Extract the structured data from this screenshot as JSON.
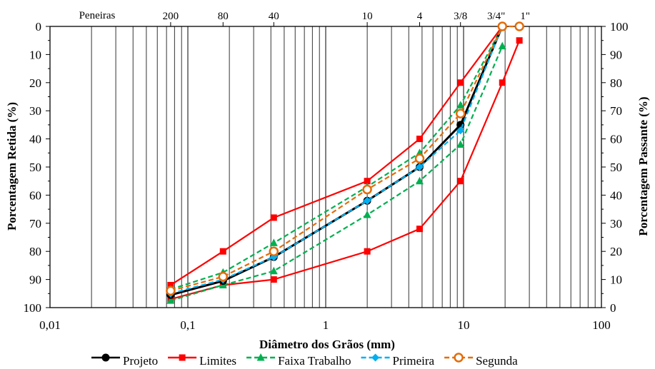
{
  "chart_data": {
    "type": "line",
    "title": "",
    "xlabel": "Diâmetro dos Grãos (mm)",
    "ylabel_left": "Porcentagem Retida (%)",
    "ylabel_right": "Porcentagem Passante (%)",
    "xscale": "log",
    "xlim": [
      0.01,
      100
    ],
    "ylim_left": [
      0,
      100
    ],
    "ylim_right": [
      0,
      100
    ],
    "left_axis_inverted": true,
    "grid": "vertical log gridlines",
    "legend_position": "bottom",
    "x_tick_labels": [
      {
        "x": 0.01,
        "label": "0,01"
      },
      {
        "x": 0.1,
        "label": "0,1"
      },
      {
        "x": 1,
        "label": "1"
      },
      {
        "x": 10,
        "label": "10"
      },
      {
        "x": 100,
        "label": "100"
      }
    ],
    "y_left_ticks": [
      "0",
      "10",
      "20",
      "30",
      "40",
      "50",
      "60",
      "70",
      "80",
      "90",
      "100"
    ],
    "y_right_ticks": [
      "100",
      "90",
      "80",
      "70",
      "60",
      "50",
      "40",
      "30",
      "20",
      "10",
      "0"
    ],
    "sieves_label": "Peneiras",
    "sieves": [
      {
        "label": "200",
        "mm": 0.075
      },
      {
        "label": "80",
        "mm": 0.18
      },
      {
        "label": "40",
        "mm": 0.42
      },
      {
        "label": "10",
        "mm": 2.0
      },
      {
        "label": "4",
        "mm": 4.8
      },
      {
        "label": "3/8",
        "mm": 9.5
      },
      {
        "label": "3/4\"",
        "mm": 19.1
      },
      {
        "label": "1\"",
        "mm": 25.4
      }
    ],
    "series": [
      {
        "name": "Projeto",
        "color": "#000000",
        "marker": "circle",
        "dash": "solid",
        "points": [
          [
            0.075,
            95.5
          ],
          [
            0.18,
            90.5
          ],
          [
            0.42,
            82
          ],
          [
            2.0,
            62
          ],
          [
            4.8,
            50
          ],
          [
            9.5,
            35
          ],
          [
            19.1,
            0
          ]
        ]
      },
      {
        "name": "Limites",
        "color": "#ff0000",
        "marker": "square",
        "dash": "solid",
        "legend": true,
        "points": [
          [
            0.075,
            92
          ],
          [
            0.18,
            80
          ],
          [
            0.42,
            68
          ],
          [
            2.0,
            55
          ],
          [
            4.8,
            40
          ],
          [
            9.5,
            20
          ],
          [
            19.1,
            0
          ]
        ]
      },
      {
        "name": "Limites",
        "color": "#ff0000",
        "marker": "square",
        "dash": "solid",
        "legend": false,
        "points": [
          [
            0.075,
            97
          ],
          [
            0.18,
            92
          ],
          [
            0.42,
            90
          ],
          [
            2.0,
            80
          ],
          [
            4.8,
            72
          ],
          [
            9.5,
            55
          ],
          [
            19.1,
            20
          ],
          [
            25.4,
            5
          ]
        ]
      },
      {
        "name": "Faixa Trabalho",
        "color": "#00b050",
        "marker": "triangle",
        "dash": "dashed",
        "legend": true,
        "points": [
          [
            0.075,
            93.5
          ],
          [
            0.18,
            87.5
          ],
          [
            0.42,
            77
          ],
          [
            2.0,
            57
          ],
          [
            4.8,
            45
          ],
          [
            9.5,
            28
          ],
          [
            19.1,
            0
          ]
        ]
      },
      {
        "name": "Faixa Trabalho",
        "color": "#00b050",
        "marker": "triangle",
        "dash": "dashed",
        "legend": false,
        "points": [
          [
            0.075,
            97.5
          ],
          [
            0.18,
            92
          ],
          [
            0.42,
            87
          ],
          [
            2.0,
            67
          ],
          [
            4.8,
            55
          ],
          [
            9.5,
            42
          ],
          [
            19.1,
            7
          ]
        ]
      },
      {
        "name": "Primeira",
        "color": "#00b0f0",
        "marker": "diamond",
        "dash": "dashed",
        "points": [
          [
            0.075,
            95
          ],
          [
            0.18,
            90
          ],
          [
            0.42,
            82
          ],
          [
            2.0,
            62
          ],
          [
            4.8,
            50
          ],
          [
            9.5,
            37
          ],
          [
            19.1,
            0
          ]
        ]
      },
      {
        "name": "Segunda",
        "color": "#e36c09",
        "marker": "open-circle",
        "dash": "dashed",
        "points": [
          [
            0.075,
            94
          ],
          [
            0.18,
            89
          ],
          [
            0.42,
            80
          ],
          [
            2.0,
            58
          ],
          [
            4.8,
            47
          ],
          [
            9.5,
            31
          ],
          [
            19.1,
            0
          ],
          [
            25.4,
            0
          ]
        ]
      }
    ]
  }
}
